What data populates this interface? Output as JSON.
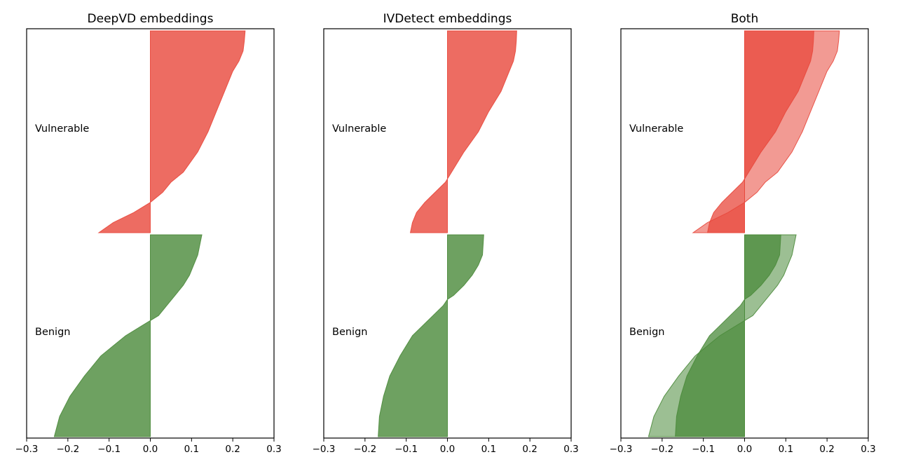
{
  "chart_data": [
    {
      "type": "area",
      "title": "DeepVD embeddings",
      "xlim": [
        -0.3,
        0.3
      ],
      "xticks": [
        -0.3,
        -0.2,
        -0.1,
        0.0,
        0.1,
        0.2,
        0.3
      ],
      "tick_labels": [
        "−0.3",
        "−0.2",
        "−0.1",
        "0.0",
        "0.1",
        "0.2",
        "0.3"
      ],
      "groups": [
        {
          "label": "Vulnerable",
          "color": "#e8473b",
          "curves": [
            {
              "name": "",
              "profile": [
                [
                  0,
                  0.23
                ],
                [
                  0.05,
                  0.228
                ],
                [
                  0.1,
                  0.225
                ],
                [
                  0.15,
                  0.215
                ],
                [
                  0.2,
                  0.2
                ],
                [
                  0.3,
                  0.18
                ],
                [
                  0.4,
                  0.16
                ],
                [
                  0.5,
                  0.14
                ],
                [
                  0.6,
                  0.115
                ],
                [
                  0.7,
                  0.08
                ],
                [
                  0.75,
                  0.05
                ],
                [
                  0.8,
                  0.03
                ],
                [
                  0.85,
                  0.0
                ],
                [
                  0.9,
                  -0.04
                ],
                [
                  0.95,
                  -0.09
                ],
                [
                  1.0,
                  -0.125
                ]
              ]
            }
          ]
        },
        {
          "label": "Benign",
          "color": "#4a8a3a",
          "curves": [
            {
              "name": "",
              "profile": [
                [
                  0,
                  0.125
                ],
                [
                  0.1,
                  0.115
                ],
                [
                  0.2,
                  0.095
                ],
                [
                  0.25,
                  0.08
                ],
                [
                  0.3,
                  0.06
                ],
                [
                  0.35,
                  0.04
                ],
                [
                  0.4,
                  0.02
                ],
                [
                  0.45,
                  -0.02
                ],
                [
                  0.5,
                  -0.06
                ],
                [
                  0.55,
                  -0.09
                ],
                [
                  0.6,
                  -0.12
                ],
                [
                  0.7,
                  -0.16
                ],
                [
                  0.8,
                  -0.195
                ],
                [
                  0.9,
                  -0.22
                ],
                [
                  1.0,
                  -0.233
                ]
              ]
            }
          ]
        }
      ]
    },
    {
      "type": "area",
      "title": "IVDetect embeddings",
      "xlim": [
        -0.3,
        0.3
      ],
      "xticks": [
        -0.3,
        -0.2,
        -0.1,
        0.0,
        0.1,
        0.2,
        0.3
      ],
      "tick_labels": [
        "−0.3",
        "−0.2",
        "−0.1",
        "0.0",
        "0.1",
        "0.2",
        "0.3"
      ],
      "groups": [
        {
          "label": "Vulnerable",
          "color": "#e8473b",
          "curves": [
            {
              "name": "",
              "profile": [
                [
                  0,
                  0.168
                ],
                [
                  0.05,
                  0.167
                ],
                [
                  0.1,
                  0.165
                ],
                [
                  0.15,
                  0.16
                ],
                [
                  0.2,
                  0.15
                ],
                [
                  0.3,
                  0.13
                ],
                [
                  0.4,
                  0.1
                ],
                [
                  0.5,
                  0.075
                ],
                [
                  0.6,
                  0.04
                ],
                [
                  0.7,
                  0.01
                ],
                [
                  0.75,
                  -0.005
                ],
                [
                  0.8,
                  -0.03
                ],
                [
                  0.85,
                  -0.055
                ],
                [
                  0.9,
                  -0.075
                ],
                [
                  0.95,
                  -0.085
                ],
                [
                  1.0,
                  -0.09
                ]
              ]
            }
          ]
        },
        {
          "label": "Benign",
          "color": "#4a8a3a",
          "curves": [
            {
              "name": "",
              "profile": [
                [
                  0,
                  0.088
                ],
                [
                  0.1,
                  0.085
                ],
                [
                  0.15,
                  0.075
                ],
                [
                  0.2,
                  0.06
                ],
                [
                  0.25,
                  0.04
                ],
                [
                  0.3,
                  0.015
                ],
                [
                  0.32,
                  0.0
                ],
                [
                  0.35,
                  -0.01
                ],
                [
                  0.4,
                  -0.035
                ],
                [
                  0.5,
                  -0.085
                ],
                [
                  0.6,
                  -0.115
                ],
                [
                  0.7,
                  -0.14
                ],
                [
                  0.8,
                  -0.155
                ],
                [
                  0.9,
                  -0.165
                ],
                [
                  1.0,
                  -0.168
                ]
              ]
            }
          ]
        }
      ]
    },
    {
      "type": "area",
      "title": "Both",
      "xlim": [
        -0.3,
        0.3
      ],
      "xticks": [
        -0.3,
        -0.2,
        -0.1,
        0.0,
        0.1,
        0.2,
        0.3
      ],
      "tick_labels": [
        "−0.3",
        "−0.2",
        "−0.1",
        "0.0",
        "0.1",
        "0.2",
        "0.3"
      ],
      "groups": [
        {
          "label": "Vulnerable",
          "color": "#e8473b",
          "curves": [
            {
              "name": "",
              "profile": [
                [
                  0,
                  0.23
                ],
                [
                  0.05,
                  0.228
                ],
                [
                  0.1,
                  0.225
                ],
                [
                  0.15,
                  0.215
                ],
                [
                  0.2,
                  0.2
                ],
                [
                  0.3,
                  0.18
                ],
                [
                  0.4,
                  0.16
                ],
                [
                  0.5,
                  0.14
                ],
                [
                  0.6,
                  0.115
                ],
                [
                  0.7,
                  0.08
                ],
                [
                  0.75,
                  0.05
                ],
                [
                  0.8,
                  0.03
                ],
                [
                  0.85,
                  0.0
                ],
                [
                  0.9,
                  -0.04
                ],
                [
                  0.95,
                  -0.09
                ],
                [
                  1.0,
                  -0.125
                ]
              ]
            },
            {
              "name": "",
              "profile": [
                [
                  0,
                  0.168
                ],
                [
                  0.05,
                  0.167
                ],
                [
                  0.1,
                  0.165
                ],
                [
                  0.15,
                  0.16
                ],
                [
                  0.2,
                  0.15
                ],
                [
                  0.3,
                  0.13
                ],
                [
                  0.4,
                  0.1
                ],
                [
                  0.5,
                  0.075
                ],
                [
                  0.6,
                  0.04
                ],
                [
                  0.7,
                  0.01
                ],
                [
                  0.75,
                  -0.005
                ],
                [
                  0.8,
                  -0.03
                ],
                [
                  0.85,
                  -0.055
                ],
                [
                  0.9,
                  -0.075
                ],
                [
                  0.95,
                  -0.085
                ],
                [
                  1.0,
                  -0.09
                ]
              ]
            }
          ]
        },
        {
          "label": "Benign",
          "color": "#4a8a3a",
          "curves": [
            {
              "name": "",
              "profile": [
                [
                  0,
                  0.125
                ],
                [
                  0.1,
                  0.115
                ],
                [
                  0.2,
                  0.095
                ],
                [
                  0.25,
                  0.08
                ],
                [
                  0.3,
                  0.06
                ],
                [
                  0.35,
                  0.04
                ],
                [
                  0.4,
                  0.02
                ],
                [
                  0.45,
                  -0.02
                ],
                [
                  0.5,
                  -0.06
                ],
                [
                  0.55,
                  -0.09
                ],
                [
                  0.6,
                  -0.12
                ],
                [
                  0.7,
                  -0.16
                ],
                [
                  0.8,
                  -0.195
                ],
                [
                  0.9,
                  -0.22
                ],
                [
                  1.0,
                  -0.233
                ]
              ]
            },
            {
              "name": "",
              "profile": [
                [
                  0,
                  0.088
                ],
                [
                  0.1,
                  0.085
                ],
                [
                  0.15,
                  0.075
                ],
                [
                  0.2,
                  0.06
                ],
                [
                  0.25,
                  0.04
                ],
                [
                  0.3,
                  0.015
                ],
                [
                  0.32,
                  0.0
                ],
                [
                  0.35,
                  -0.01
                ],
                [
                  0.4,
                  -0.035
                ],
                [
                  0.5,
                  -0.085
                ],
                [
                  0.6,
                  -0.115
                ],
                [
                  0.7,
                  -0.14
                ],
                [
                  0.8,
                  -0.155
                ],
                [
                  0.9,
                  -0.165
                ],
                [
                  1.0,
                  -0.168
                ]
              ]
            }
          ]
        }
      ]
    }
  ]
}
